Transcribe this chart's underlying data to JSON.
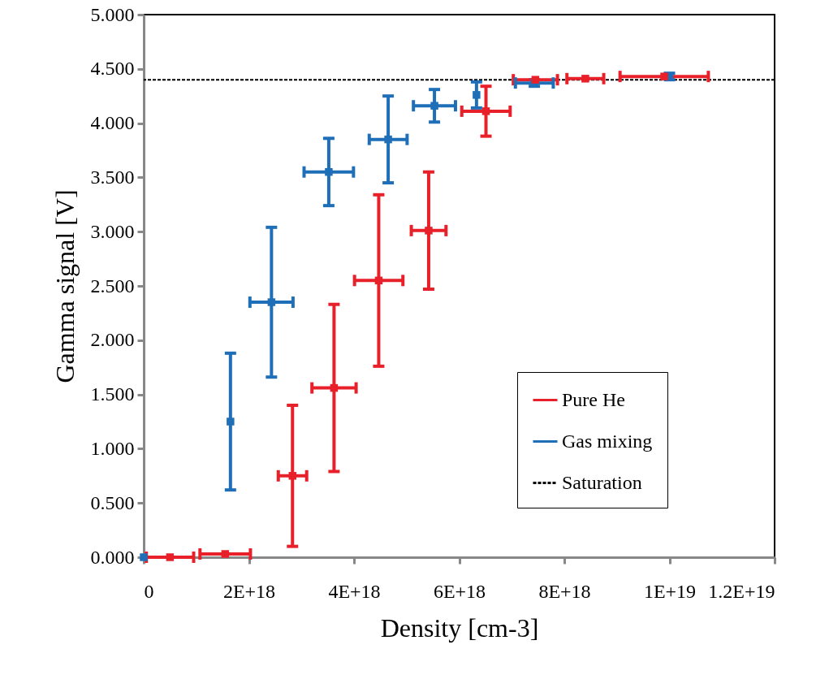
{
  "chart_data": {
    "type": "scatter",
    "xlabel": "Density [cm-3]",
    "ylabel": "Gamma signal [V]",
    "xlim": [
      0,
      1.2e+19
    ],
    "ylim": [
      0,
      5
    ],
    "xticks": [
      0,
      {
        "value": 2e+18,
        "label": "2E+18"
      },
      {
        "value": 4e+18,
        "label": "4E+18"
      },
      {
        "value": 6e+18,
        "label": "6E+18"
      },
      {
        "value": 8e+18,
        "label": "8E+18"
      },
      {
        "value": 1e+19,
        "label": "1E+19"
      },
      {
        "value": 1.2e+19,
        "label": "1.2E+19"
      }
    ],
    "yticks": [
      {
        "value": 0,
        "label": "0.000"
      },
      {
        "value": 0.5,
        "label": "0.500"
      },
      {
        "value": 1,
        "label": "1.000"
      },
      {
        "value": 1.5,
        "label": "1.500"
      },
      {
        "value": 2,
        "label": "2.000"
      },
      {
        "value": 2.5,
        "label": "2.500"
      },
      {
        "value": 3,
        "label": "3.000"
      },
      {
        "value": 3.5,
        "label": "3.500"
      },
      {
        "value": 4,
        "label": "4.000"
      },
      {
        "value": 4.5,
        "label": "4.500"
      },
      {
        "value": 5,
        "label": "5.000"
      }
    ],
    "series": [
      {
        "name": "Pure He",
        "color": "#e8202a",
        "x": [
          5e+17,
          1.55e+18,
          2.83e+18,
          3.62e+18,
          4.47e+18,
          5.42e+18,
          6.51e+18,
          7.45e+18,
          8.4e+18,
          9.9e+18
        ],
        "values": [
          0,
          0.03,
          0.75,
          1.56,
          2.55,
          3.01,
          4.11,
          4.4,
          4.41,
          4.43
        ],
        "errors": [
          null,
          null,
          0.65,
          0.77,
          0.79,
          0.54,
          0.23,
          null,
          null,
          null
        ],
        "xerrors": [
          4.5e+17,
          4.8e+17,
          2.7e+17,
          4.2e+17,
          4.6e+17,
          3.3e+17,
          4.6e+17,
          4.2e+17,
          3.5e+17,
          8.4e+17
        ]
      },
      {
        "name": "Gas mixing",
        "color": "#1f6fb8",
        "x": [
          0,
          1.65e+18,
          2.43e+18,
          3.52e+18,
          4.65e+18,
          5.53e+18,
          6.33e+18,
          7.43e+18,
          1e+19
        ],
        "values": [
          0,
          1.25,
          2.35,
          3.55,
          3.85,
          4.16,
          4.26,
          4.37,
          4.43
        ],
        "errors": [
          null,
          0.63,
          0.69,
          0.31,
          0.4,
          0.15,
          0.12,
          0.03,
          0.03
        ],
        "xerrors": [
          null,
          null,
          4.1e+17,
          4.7e+17,
          3.6e+17,
          4e+17,
          null,
          3.6e+17,
          null
        ]
      }
    ],
    "ref_lines": [
      {
        "axis": "y",
        "value": 4.4,
        "label": "Saturation",
        "color": "#000000",
        "line_style": "dashed"
      }
    ],
    "grid": false,
    "legend": "bottom right",
    "marker": "square"
  }
}
